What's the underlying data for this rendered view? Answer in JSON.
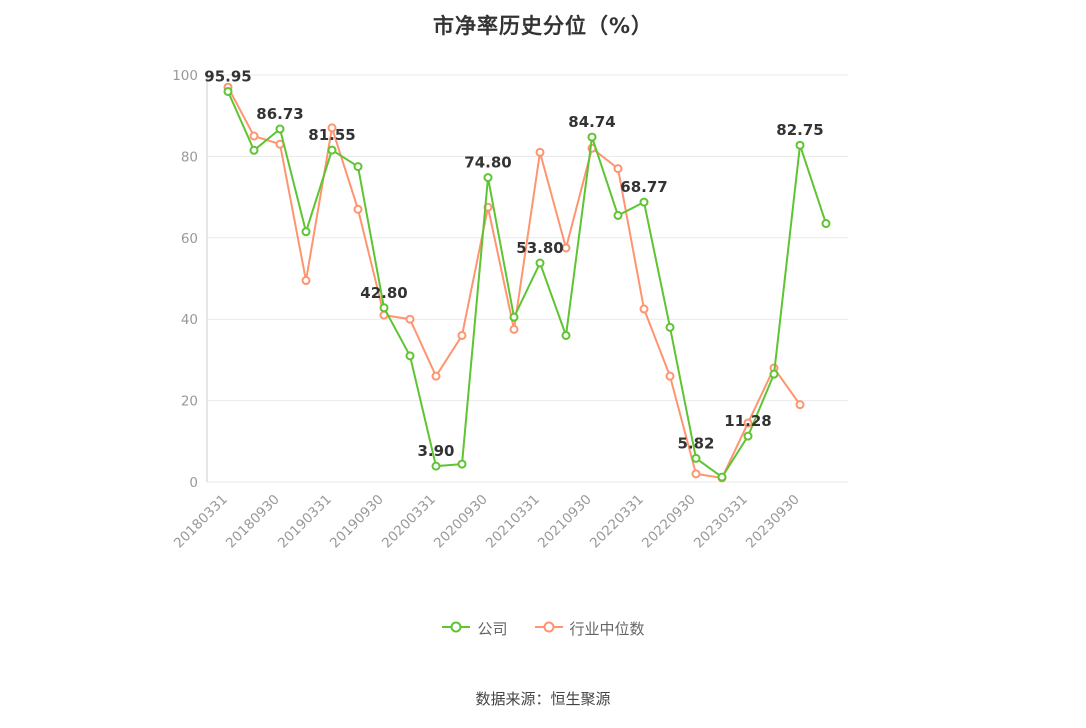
{
  "title": "市净率历史分位（%）",
  "source": "数据来源：恒生聚源",
  "legend": [
    {
      "key": "company",
      "name": "公司",
      "color": "#5ec432"
    },
    {
      "key": "industry",
      "name": "行业中位数",
      "color": "#ff9470"
    }
  ],
  "chart_data": {
    "type": "line",
    "x_tick_labels": [
      "20180331",
      "20180930",
      "20190331",
      "20190930",
      "20200331",
      "20200930",
      "20210331",
      "20210930",
      "20220331",
      "20220930",
      "20230331",
      "20230930"
    ],
    "y_ticks": [
      0,
      20,
      40,
      60,
      80,
      100
    ],
    "ylim": [
      0,
      100
    ],
    "grid": true,
    "legend_position": "bottom",
    "series": [
      {
        "key": "company",
        "name": "公司",
        "color": "#5ec432",
        "values": [
          95.95,
          81.5,
          86.73,
          61.5,
          81.55,
          77.5,
          42.8,
          31,
          3.9,
          4.4,
          74.8,
          40.5,
          53.8,
          36,
          84.74,
          65.5,
          68.77,
          38,
          5.82,
          1.2,
          11.28,
          26.5,
          82.75,
          63.5
        ],
        "point_labels": {
          "0": "95.95",
          "2": "86.73",
          "4": "81.55",
          "6": "42.80",
          "8": "3.90",
          "10": "74.80",
          "12": "53.80",
          "14": "84.74",
          "16": "68.77",
          "18": "5.82",
          "20": "11.28",
          "22": "82.75"
        }
      },
      {
        "key": "industry",
        "name": "行业中位数",
        "color": "#ff9470",
        "values": [
          97,
          85,
          83,
          49.5,
          87,
          67,
          41,
          40,
          26,
          36,
          67.5,
          37.5,
          81,
          57.5,
          82,
          77,
          42.5,
          26,
          2,
          1,
          14.5,
          28,
          19,
          null
        ]
      }
    ]
  }
}
